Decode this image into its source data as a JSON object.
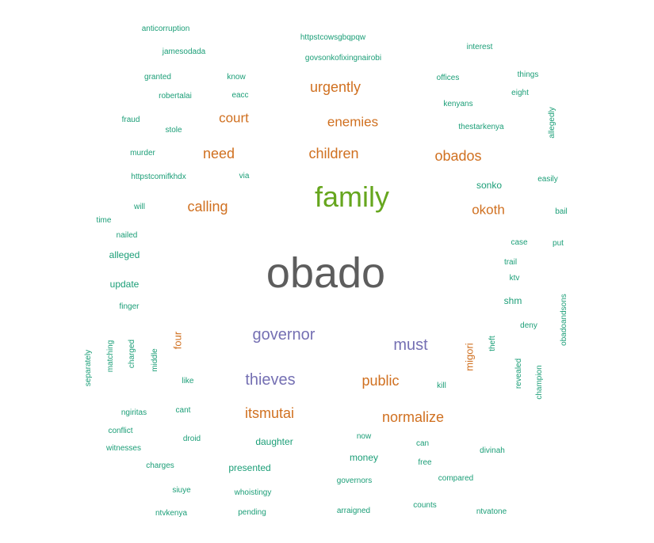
{
  "colors": {
    "gray": "#5d5d5d",
    "green": "#66a61e",
    "orange": "#d07020",
    "purple": "#7570b3",
    "teal": "#1b9e77"
  },
  "words": [
    {
      "text": "obado"
    },
    {
      "text": "family"
    },
    {
      "text": "governor"
    },
    {
      "text": "thieves"
    },
    {
      "text": "must"
    },
    {
      "text": "urgently"
    },
    {
      "text": "enemies"
    },
    {
      "text": "court"
    },
    {
      "text": "children"
    },
    {
      "text": "need"
    },
    {
      "text": "obados"
    },
    {
      "text": "calling"
    },
    {
      "text": "okoth"
    },
    {
      "text": "public"
    },
    {
      "text": "itsmutai"
    },
    {
      "text": "normalize"
    },
    {
      "text": "four"
    },
    {
      "text": "migori"
    },
    {
      "text": "anticorruption"
    },
    {
      "text": "httpstcowsgbqpqw"
    },
    {
      "text": "jamesodada"
    },
    {
      "text": "govsonkofixingnairobi"
    },
    {
      "text": "interest"
    },
    {
      "text": "granted"
    },
    {
      "text": "know"
    },
    {
      "text": "offices"
    },
    {
      "text": "things"
    },
    {
      "text": "robertalai"
    },
    {
      "text": "eacc"
    },
    {
      "text": "eight"
    },
    {
      "text": "kenyans"
    },
    {
      "text": "fraud"
    },
    {
      "text": "stole"
    },
    {
      "text": "thestarkenya"
    },
    {
      "text": "allegedly"
    },
    {
      "text": "murder"
    },
    {
      "text": "httpstcomifkhdx"
    },
    {
      "text": "via"
    },
    {
      "text": "sonko"
    },
    {
      "text": "easily"
    },
    {
      "text": "will"
    },
    {
      "text": "time"
    },
    {
      "text": "bail"
    },
    {
      "text": "nailed"
    },
    {
      "text": "case"
    },
    {
      "text": "put"
    },
    {
      "text": "alleged"
    },
    {
      "text": "trail"
    },
    {
      "text": "ktv"
    },
    {
      "text": "update"
    },
    {
      "text": "shm"
    },
    {
      "text": "finger"
    },
    {
      "text": "obadoandsons"
    },
    {
      "text": "deny"
    },
    {
      "text": "theft"
    },
    {
      "text": "separately"
    },
    {
      "text": "matching"
    },
    {
      "text": "charged"
    },
    {
      "text": "middle"
    },
    {
      "text": "like"
    },
    {
      "text": "revealed"
    },
    {
      "text": "champion"
    },
    {
      "text": "kill"
    },
    {
      "text": "ngiritas"
    },
    {
      "text": "cant"
    },
    {
      "text": "conflict"
    },
    {
      "text": "droid"
    },
    {
      "text": "daughter"
    },
    {
      "text": "now"
    },
    {
      "text": "can"
    },
    {
      "text": "witnesses"
    },
    {
      "text": "money"
    },
    {
      "text": "free"
    },
    {
      "text": "divinah"
    },
    {
      "text": "charges"
    },
    {
      "text": "presented"
    },
    {
      "text": "compared"
    },
    {
      "text": "governors"
    },
    {
      "text": "siuye"
    },
    {
      "text": "whoistingy"
    },
    {
      "text": "ntvkenya"
    },
    {
      "text": "pending"
    },
    {
      "text": "arraigned"
    },
    {
      "text": "counts"
    },
    {
      "text": "ntvatone"
    }
  ]
}
